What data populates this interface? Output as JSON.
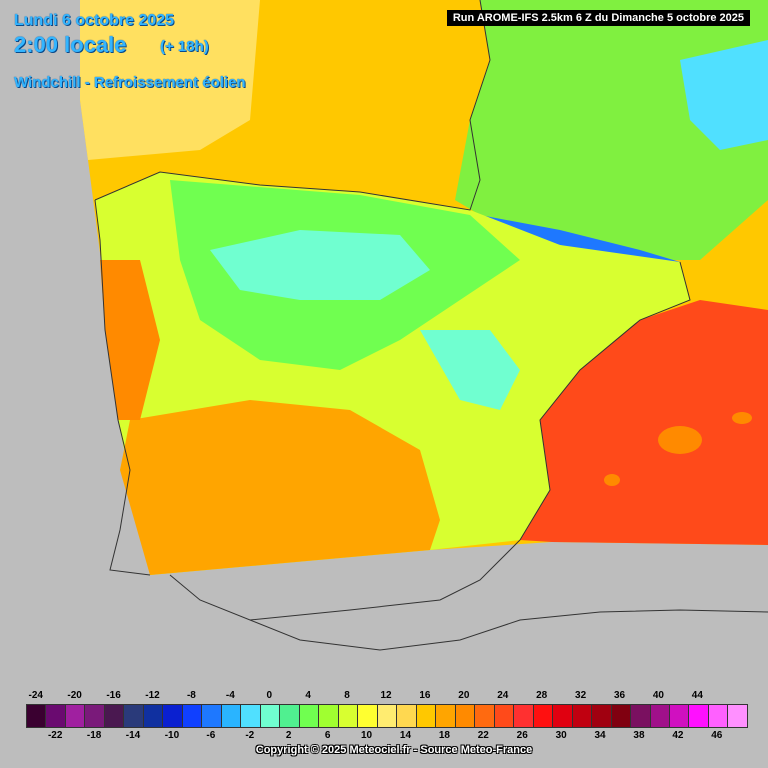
{
  "header": {
    "date": "Lundi 6 octobre 2025",
    "time": "2:00 locale",
    "lead": "(+ 18h)",
    "subtitle": "Windchill - Refroissement éolien"
  },
  "run_label": "Run AROME-IFS 2.5km 6 Z du Dimanche 5 octobre 2025",
  "legend": {
    "top_ticks": [
      "-24",
      "-20",
      "-16",
      "-12",
      "-8",
      "-4",
      "0",
      "4",
      "8",
      "12",
      "16",
      "20",
      "24",
      "28",
      "32",
      "36",
      "40",
      "44"
    ],
    "bottom_ticks": [
      "-22",
      "-18",
      "-14",
      "-10",
      "-6",
      "-2",
      "2",
      "6",
      "10",
      "14",
      "18",
      "22",
      "26",
      "30",
      "34",
      "38",
      "42",
      "46"
    ],
    "colors": [
      "#3a0030",
      "#6a0a70",
      "#a020a0",
      "#7a1a7a",
      "#4a1850",
      "#2a3a7a",
      "#1030a0",
      "#0a20d0",
      "#1040ff",
      "#1e78ff",
      "#2ab4ff",
      "#50e0ff",
      "#70ffd0",
      "#50f090",
      "#70ff50",
      "#a0ff30",
      "#d8ff30",
      "#ffff30",
      "#ffec70",
      "#ffd850",
      "#ffc800",
      "#ffa500",
      "#ff8a00",
      "#ff6a10",
      "#ff4a1a",
      "#ff3030",
      "#ff1010",
      "#e00010",
      "#c00010",
      "#a00010",
      "#800010",
      "#7a1060",
      "#a0108a",
      "#d010c0",
      "#ff10ff",
      "#ff60ff",
      "#ff90ff"
    ]
  },
  "copyright": "Copyright © 2025 Meteociel.fr - Source Meteo-France"
}
